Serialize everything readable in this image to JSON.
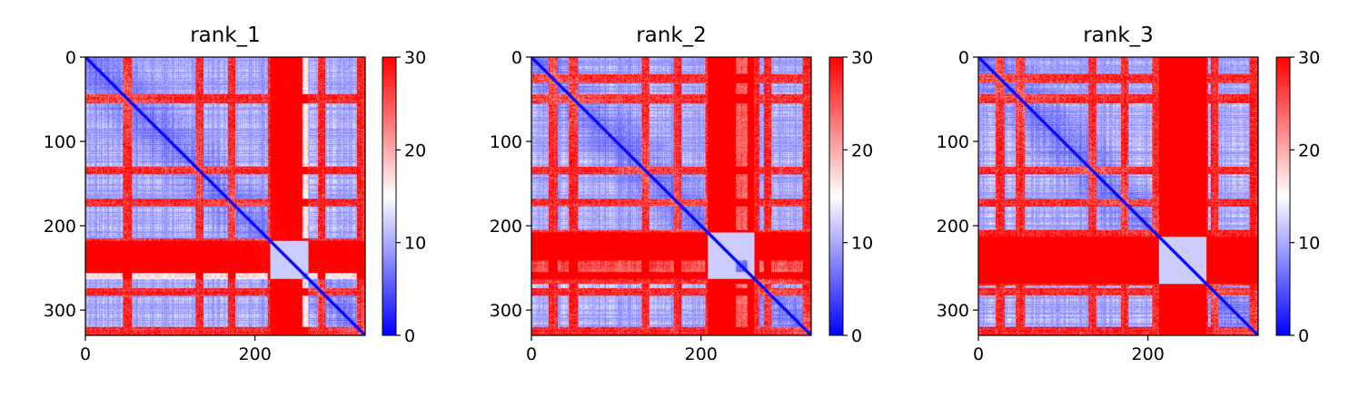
{
  "chart_data": [
    {
      "type": "heatmap",
      "title": "rank_1",
      "xlim": [
        0,
        330
      ],
      "ylim": [
        330,
        0
      ],
      "xticks": [
        0,
        200
      ],
      "yticks": [
        0,
        100,
        200,
        300
      ],
      "colorbar": {
        "range": [
          0,
          30
        ],
        "ticks": [
          0,
          10,
          20,
          30
        ],
        "colormap": [
          "#0000ff",
          "#ffffff",
          "#ff0000"
        ]
      },
      "hot_bands": [
        [
          44,
          54
        ],
        [
          130,
          138
        ],
        [
          168,
          176
        ],
        [
          215,
          255
        ],
        [
          274,
          282
        ],
        [
          320,
          330
        ]
      ],
      "hot_cols": [
        [
          218,
          262
        ]
      ],
      "col_strength": 0.35,
      "seed": 11
    },
    {
      "type": "heatmap",
      "title": "rank_2",
      "xlim": [
        0,
        330
      ],
      "ylim": [
        330,
        0
      ],
      "xticks": [
        0,
        200
      ],
      "yticks": [
        0,
        100,
        200,
        300
      ],
      "colorbar": {
        "range": [
          0,
          30
        ],
        "ticks": [
          0,
          10,
          20,
          30
        ],
        "colormap": [
          "#0000ff",
          "#ffffff",
          "#ff0000"
        ]
      },
      "hot_bands": [
        [
          20,
          30
        ],
        [
          44,
          54
        ],
        [
          130,
          138
        ],
        [
          168,
          176
        ],
        [
          205,
          240
        ],
        [
          255,
          268
        ],
        [
          274,
          282
        ],
        [
          320,
          330
        ]
      ],
      "hot_cols": [
        [
          208,
          262
        ]
      ],
      "col_strength": 0.8,
      "seed": 23
    },
    {
      "type": "heatmap",
      "title": "rank_3",
      "xlim": [
        0,
        330
      ],
      "ylim": [
        330,
        0
      ],
      "xticks": [
        0,
        200
      ],
      "yticks": [
        0,
        100,
        200,
        300
      ],
      "colorbar": {
        "range": [
          0,
          30
        ],
        "ticks": [
          0,
          10,
          20,
          30
        ],
        "colormap": [
          "#0000ff",
          "#ffffff",
          "#ff0000"
        ]
      },
      "hot_bands": [
        [
          20,
          30
        ],
        [
          44,
          54
        ],
        [
          130,
          138
        ],
        [
          168,
          176
        ],
        [
          205,
          270
        ],
        [
          274,
          282
        ],
        [
          320,
          330
        ]
      ],
      "hot_cols": [
        [
          213,
          268
        ]
      ],
      "col_strength": 0.9,
      "seed": 37
    }
  ]
}
